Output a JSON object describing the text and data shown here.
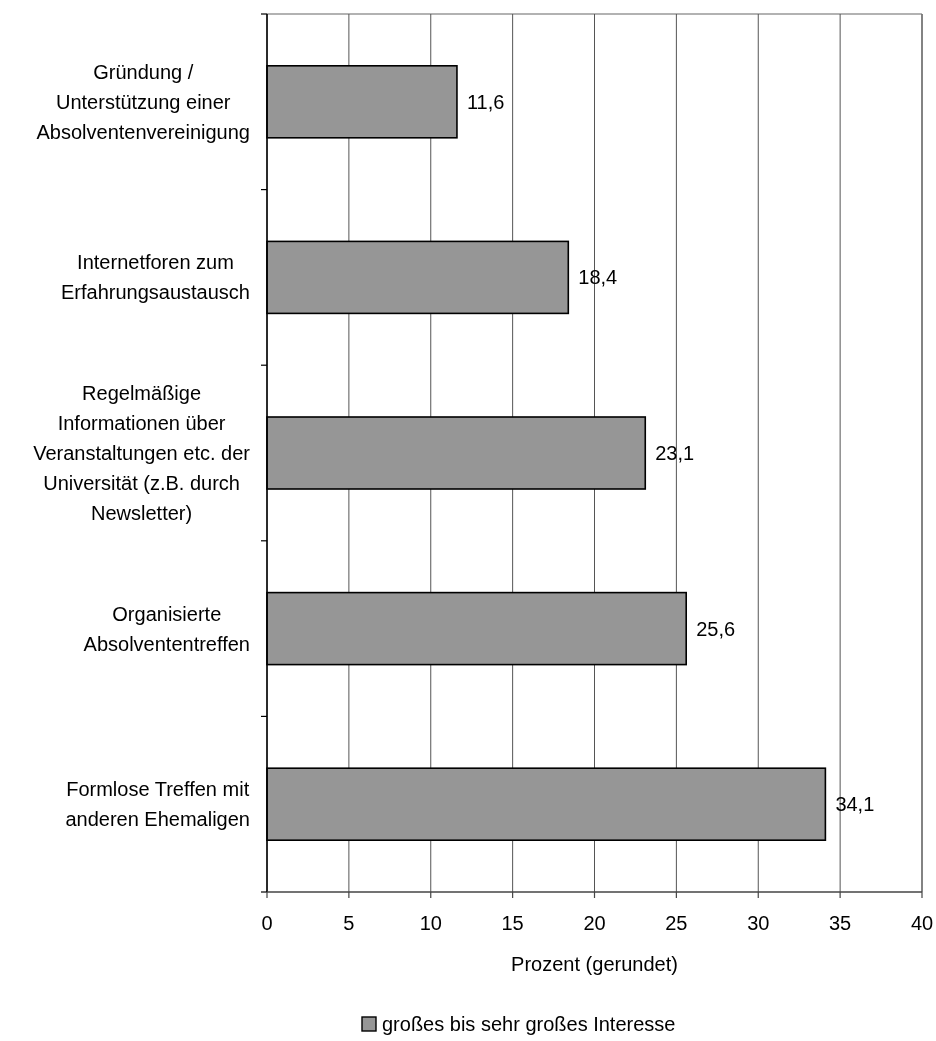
{
  "chart_data": {
    "type": "bar",
    "orientation": "horizontal",
    "xlabel": "Prozent (gerundet)",
    "categories": [
      "Gründung /\nUnterstützung einer\nAbsolventenvereinigung",
      "Internetforen zum\nErfahrungsaustausch",
      "Regelmäßige\nInformationen über\nVeranstaltungen etc. der\nUniversität (z.B. durch\nNewsletter)",
      "Organisierte\nAbsolvententreffen",
      "Formlose Treffen mit\nanderen Ehemaligen"
    ],
    "series": [
      {
        "name": "großes bis sehr großes Interesse",
        "color": "#969696",
        "values": [
          11.6,
          18.4,
          23.1,
          25.6,
          34.1
        ],
        "value_labels": [
          "11,6",
          "18,4",
          "23,1",
          "25,6",
          "34,1"
        ]
      }
    ],
    "xlim": [
      0,
      40
    ],
    "xticks": [
      0,
      5,
      10,
      15,
      20,
      25,
      30,
      35,
      40
    ],
    "grid": "x",
    "legend": "bottom"
  }
}
